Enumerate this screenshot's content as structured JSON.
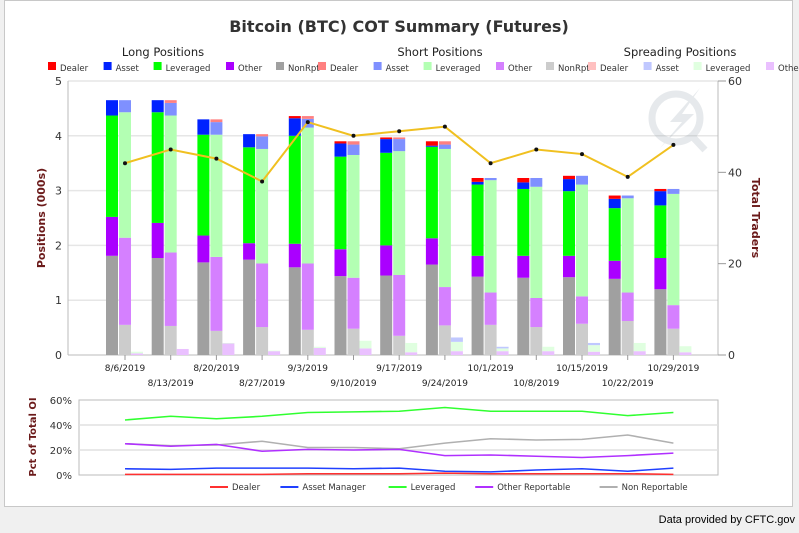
{
  "footer": "Data provided by CFTC.gov",
  "colors": {
    "long": {
      "Dealer": "#ff0000",
      "Asset": "#0022ff",
      "Leveraged": "#00ff00",
      "Other": "#aa00ff",
      "NonRpt": "#a0a0a0"
    },
    "short": {
      "Dealer": "#ff8080",
      "Asset": "#7f90ff",
      "Leveraged": "#b3ffb3",
      "Other": "#d580ff",
      "NonRpt": "#cccccc"
    },
    "spreading": {
      "Dealer": "#ffc0c0",
      "Asset": "#c0c8ff",
      "Leveraged": "#e0ffe0",
      "Other": "#eac0ff"
    },
    "traders_line": "#f0c020",
    "pct": {
      "Dealer": "#ff3030",
      "Asset Manager": "#2040ff",
      "Leveraged": "#30ff30",
      "Other Reportable": "#b030ff",
      "Non Reportable": "#b0b0b0"
    }
  },
  "chart_data": [
    {
      "type": "bar",
      "title": "Bitcoin (BTC) COT Summary (Futures)",
      "ylabel": "Positions (000s)",
      "y2label": "Total Traders",
      "ylim": [
        0,
        5
      ],
      "y2lim": [
        0,
        60
      ],
      "yticks": [
        "0",
        "1",
        "2",
        "3",
        "4",
        "5"
      ],
      "y2ticks": [
        "0",
        "20",
        "40",
        "60"
      ],
      "grid": true,
      "stacked": true,
      "categories": [
        "8/6/2019",
        "8/13/2019",
        "8/20/2019",
        "8/27/2019",
        "9/3/2019",
        "9/10/2019",
        "9/17/2019",
        "9/24/2019",
        "10/1/2019",
        "10/8/2019",
        "10/15/2019",
        "10/22/2019",
        "10/29/2019"
      ],
      "groups": [
        {
          "title": "Long Positions",
          "key": "long",
          "legend": [
            "Dealer",
            "Asset",
            "Leveraged",
            "Other",
            "NonRpt"
          ],
          "stack_order": [
            "NonRpt",
            "Other",
            "Leveraged",
            "Asset",
            "Dealer"
          ],
          "values": {
            "NonRpt": [
              1.81,
              1.77,
              1.69,
              1.74,
              1.6,
              1.44,
              1.45,
              1.65,
              1.43,
              1.41,
              1.42,
              1.39,
              1.2
            ],
            "Other": [
              0.71,
              0.64,
              0.49,
              0.3,
              0.43,
              0.49,
              0.55,
              0.48,
              0.38,
              0.4,
              0.39,
              0.33,
              0.57
            ],
            "Leveraged": [
              1.85,
              2.02,
              1.84,
              1.75,
              1.97,
              1.69,
              1.69,
              1.67,
              1.3,
              1.22,
              1.18,
              0.96,
              0.96
            ],
            "Asset": [
              0.28,
              0.22,
              0.28,
              0.24,
              0.32,
              0.24,
              0.25,
              0.02,
              0.05,
              0.12,
              0.22,
              0.17,
              0.26
            ],
            "Dealer": [
              0,
              0,
              0,
              0,
              0.04,
              0.04,
              0.03,
              0.08,
              0.07,
              0.08,
              0.06,
              0.06,
              0.04
            ]
          }
        },
        {
          "title": "Short Positions",
          "key": "short",
          "legend": [
            "Dealer",
            "Asset",
            "Leveraged",
            "Other",
            "NonRpt"
          ],
          "stack_order": [
            "NonRpt",
            "Other",
            "Leveraged",
            "Asset",
            "Dealer"
          ],
          "values": {
            "NonRpt": [
              0.55,
              0.53,
              0.44,
              0.51,
              0.46,
              0.48,
              0.35,
              0.54,
              0.55,
              0.51,
              0.57,
              0.62,
              0.48
            ],
            "Other": [
              1.59,
              1.34,
              1.35,
              1.16,
              1.21,
              0.93,
              1.11,
              0.7,
              0.59,
              0.53,
              0.5,
              0.52,
              0.43
            ],
            "Leveraged": [
              2.29,
              2.5,
              2.23,
              2.09,
              2.48,
              2.24,
              2.26,
              2.52,
              2.05,
              2.03,
              2.04,
              1.72,
              2.03
            ],
            "Asset": [
              0.22,
              0.23,
              0.23,
              0.23,
              0.16,
              0.19,
              0.22,
              0.08,
              0.04,
              0.16,
              0.16,
              0.05,
              0.09
            ],
            "Dealer": [
              0,
              0.05,
              0.05,
              0.04,
              0.05,
              0.06,
              0.03,
              0.06,
              0,
              0,
              0,
              0,
              0
            ]
          }
        },
        {
          "title": "Spreading Positions",
          "key": "spreading",
          "legend": [
            "Dealer",
            "Asset",
            "Leveraged",
            "Other"
          ],
          "stack_order": [
            "Other",
            "Leveraged",
            "Asset",
            "Dealer"
          ],
          "values": {
            "Other": [
              0.03,
              0.11,
              0.21,
              0.07,
              0.13,
              0.12,
              0.05,
              0.07,
              0.07,
              0.07,
              0.06,
              0.07,
              0.05
            ],
            "Leveraged": [
              0.03,
              0,
              0.01,
              0.01,
              0.02,
              0.14,
              0.17,
              0.17,
              0.05,
              0.08,
              0.12,
              0.15,
              0.11
            ],
            "Asset": [
              0,
              0,
              0,
              0,
              0,
              0,
              0,
              0.08,
              0.03,
              0,
              0.04,
              0,
              0
            ],
            "Dealer": [
              0,
              0,
              0,
              0,
              0,
              0,
              0,
              0,
              0,
              0,
              0,
              0,
              0
            ]
          }
        }
      ],
      "total_traders": [
        42,
        45,
        43,
        38,
        51,
        48,
        49,
        50,
        42,
        45,
        44,
        39,
        46
      ]
    },
    {
      "type": "line",
      "ylabel": "Pct of Total OI",
      "ylim": [
        0,
        60
      ],
      "yticks": [
        "0%",
        "20%",
        "40%",
        "60%"
      ],
      "grid": true,
      "legend_position": "bottom",
      "categories": [
        "8/6/2019",
        "8/13/2019",
        "8/20/2019",
        "8/27/2019",
        "9/3/2019",
        "9/10/2019",
        "9/17/2019",
        "9/24/2019",
        "10/1/2019",
        "10/8/2019",
        "10/15/2019",
        "10/22/2019",
        "10/29/2019"
      ],
      "series": [
        {
          "name": "Dealer",
          "values": [
            0.5,
            0.5,
            0.5,
            0.5,
            1,
            1,
            1,
            1.5,
            1,
            1,
            1,
            1,
            0.5
          ]
        },
        {
          "name": "Asset Manager",
          "values": [
            5,
            4.5,
            5.5,
            5.5,
            5.5,
            5,
            5.5,
            3,
            2.5,
            4,
            5,
            3,
            5.5
          ]
        },
        {
          "name": "Leveraged",
          "values": [
            44,
            47,
            45,
            47,
            50,
            50.5,
            51,
            54,
            51,
            51,
            51,
            47.5,
            50
          ]
        },
        {
          "name": "Other Reportable",
          "values": [
            25,
            23,
            24.5,
            19,
            20.5,
            20,
            20.5,
            15.5,
            16,
            15,
            14,
            15.5,
            17.5
          ]
        },
        {
          "name": "Non Reportable",
          "values": [
            25,
            23.5,
            24,
            27,
            22,
            22,
            21,
            25.5,
            29,
            28,
            28.5,
            32,
            25.5
          ]
        }
      ]
    }
  ]
}
